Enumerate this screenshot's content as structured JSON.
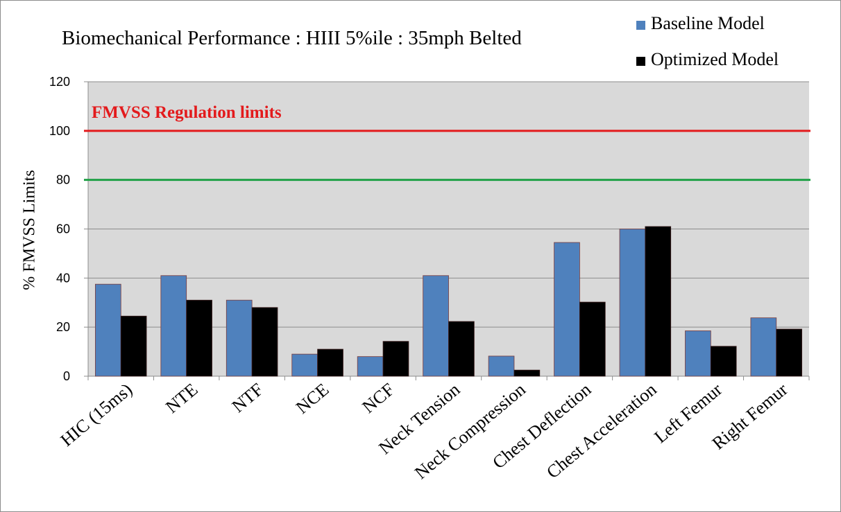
{
  "chart_data": {
    "type": "bar",
    "title": "Biomechanical Performance : HIII 5%ile : 35mph Belted",
    "xlabel": "",
    "ylabel": "% FMVSS Limits",
    "ylim": [
      0,
      120
    ],
    "yticks": [
      0,
      20,
      40,
      60,
      80,
      100,
      120
    ],
    "grid": true,
    "legend_position": "top-right",
    "categories": [
      "HIC (15ms)",
      "NTE",
      "NTF",
      "NCE",
      "NCF",
      "Neck Tension",
      "Neck Compression",
      "Chest Deflection",
      "Chest Acceleration",
      "Left Femur",
      "Right Femur"
    ],
    "series": [
      {
        "name": "Baseline Model",
        "color": "#4f81bd",
        "values": [
          37.5,
          41,
          31,
          9,
          8,
          41,
          8.2,
          54.5,
          60,
          18.5,
          23.8
        ]
      },
      {
        "name": "Optimized Model",
        "color": "#000000",
        "values": [
          24.5,
          31,
          28,
          11,
          14.2,
          22.3,
          2.5,
          30.2,
          61,
          12.2,
          19.2
        ]
      }
    ],
    "reference_lines": [
      {
        "value": 100,
        "color": "#e31a1c",
        "label": "FMVSS Regulation limits"
      },
      {
        "value": 80,
        "color": "#1fa046"
      }
    ],
    "plot_background": "#d9d9d9"
  }
}
